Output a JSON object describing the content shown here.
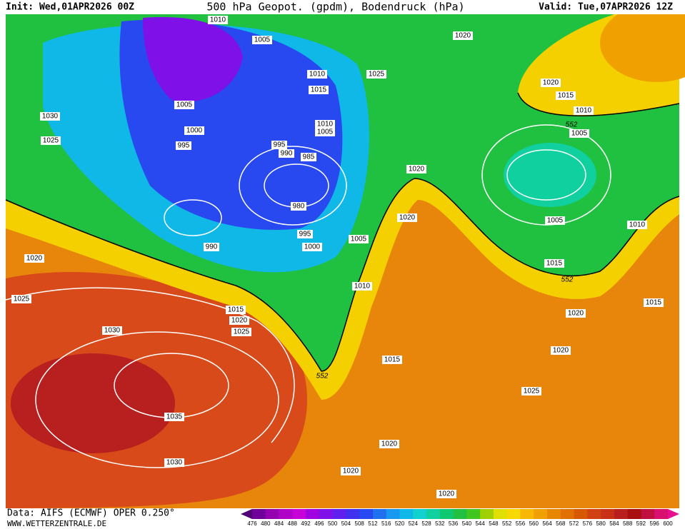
{
  "header": {
    "init": "Init: Wed,01APR2026 00Z",
    "title": "500 hPa Geopot. (gpdm), Bodendruck (hPa)",
    "valid": "Valid: Tue,07APR2026 12Z"
  },
  "isobar_labels": [
    1010,
    1005,
    1020,
    1010,
    1025,
    1015,
    1020,
    1015,
    1010,
    1030,
    1005,
    1010,
    1005,
    552,
    1005,
    1025,
    1000,
    995,
    995,
    990,
    985,
    1020,
    980,
    1020,
    1005,
    1010,
    995,
    1005,
    990,
    1000,
    1020,
    1015,
    552,
    1010,
    1025,
    1015,
    1015,
    1020,
    1020,
    1025,
    1030,
    1020,
    1015,
    552,
    1025,
    1035,
    1020,
    1030,
    1020,
    1020
  ],
  "footer": {
    "data": "Data: AIFS (ECMWF) OPER 0.250°",
    "site": "WWW.WETTERZENTRALE.DE"
  },
  "colorbar": {
    "labels": [
      476,
      480,
      484,
      488,
      492,
      496,
      500,
      504,
      508,
      512,
      516,
      520,
      524,
      528,
      532,
      536,
      540,
      544,
      548,
      552,
      556,
      560,
      564,
      568,
      572,
      576,
      580,
      584,
      588,
      592,
      596,
      600
    ],
    "colors": [
      "#500070",
      "#70009a",
      "#9400b0",
      "#b000c8",
      "#c800d8",
      "#a000e0",
      "#8010e8",
      "#6020f0",
      "#4030f0",
      "#2848f0",
      "#2070f0",
      "#1898f0",
      "#10b8e8",
      "#10d0d0",
      "#10d0a0",
      "#10c870",
      "#20c040",
      "#40c820",
      "#a0d000",
      "#e0e000",
      "#f8d800",
      "#f8b800",
      "#f0a000",
      "#e88800",
      "#e07000",
      "#d85800",
      "#d04010",
      "#c83018",
      "#b82020",
      "#a81010",
      "#c01040",
      "#d81070",
      "#e81090"
    ]
  }
}
